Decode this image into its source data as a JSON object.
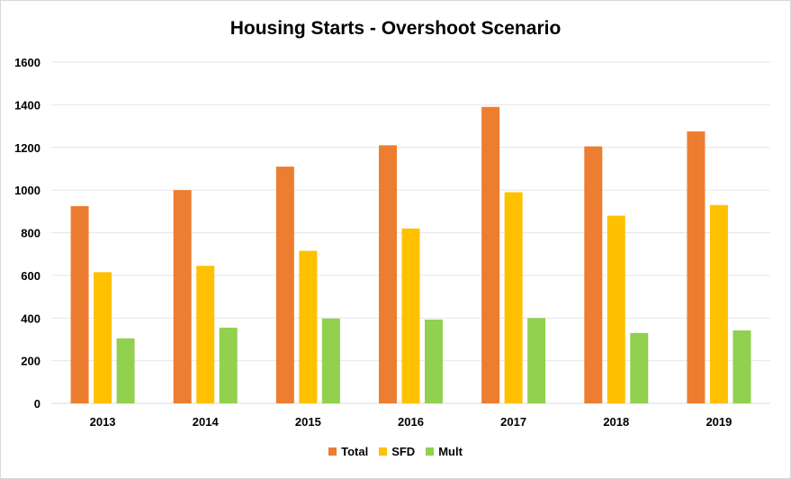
{
  "chart_data": {
    "type": "bar",
    "title": "Housing Starts - Overshoot Scenario",
    "xlabel": "",
    "ylabel": "",
    "categories": [
      "2013",
      "2014",
      "2015",
      "2016",
      "2017",
      "2018",
      "2019"
    ],
    "series": [
      {
        "name": "Total",
        "color": "#ED7D31",
        "values": [
          925,
          1000,
          1110,
          1210,
          1390,
          1205,
          1275
        ]
      },
      {
        "name": "SFD",
        "color": "#FFC000",
        "values": [
          615,
          645,
          715,
          820,
          990,
          880,
          930
        ]
      },
      {
        "name": "Mult",
        "color": "#92D050",
        "values": [
          305,
          355,
          398,
          393,
          400,
          330,
          342
        ]
      }
    ],
    "ylim": [
      0,
      1600
    ],
    "yticks": [
      0,
      200,
      400,
      600,
      800,
      1000,
      1200,
      1400,
      1600
    ],
    "grid": true,
    "legend_position": "bottom"
  }
}
